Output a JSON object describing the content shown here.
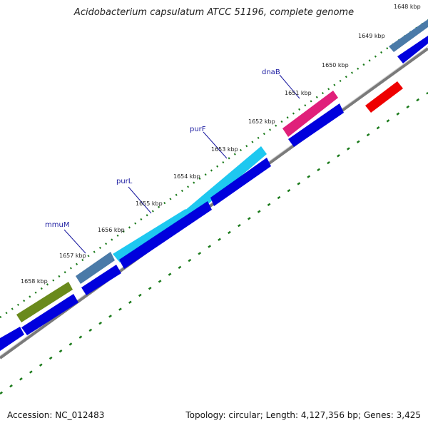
{
  "title": "Acidobacterium capsulatum ATCC 51196, complete genome",
  "accession": "Accession: NC_012483",
  "summary": "Topology: circular; Length: 4,127,356 bp; Genes: 3,425",
  "tick_labels": [
    "1648 kbp",
    "1649 kbp",
    "1650 kbp",
    "1651 kbp",
    "1652 kbp",
    "1653 kbp",
    "1654 kbp",
    "1655 kbp",
    "1656 kbp",
    "1657 kbp",
    "1658 kbp"
  ],
  "gene_labels": [
    "dnaB",
    "purF",
    "purL",
    "mmuM"
  ],
  "colors": {
    "backbone": "#7a7a7a",
    "ticks": "#1a7a1a",
    "cds": "#0000dd",
    "dnaB": "#e0207a",
    "purF": "#1ec8f0",
    "purL": "#1ec8f0",
    "mmuM": "#4a7aa8",
    "olive": "#6a8a1c",
    "reverse_feature": "#ee0000",
    "label": "#1a1aa0"
  }
}
